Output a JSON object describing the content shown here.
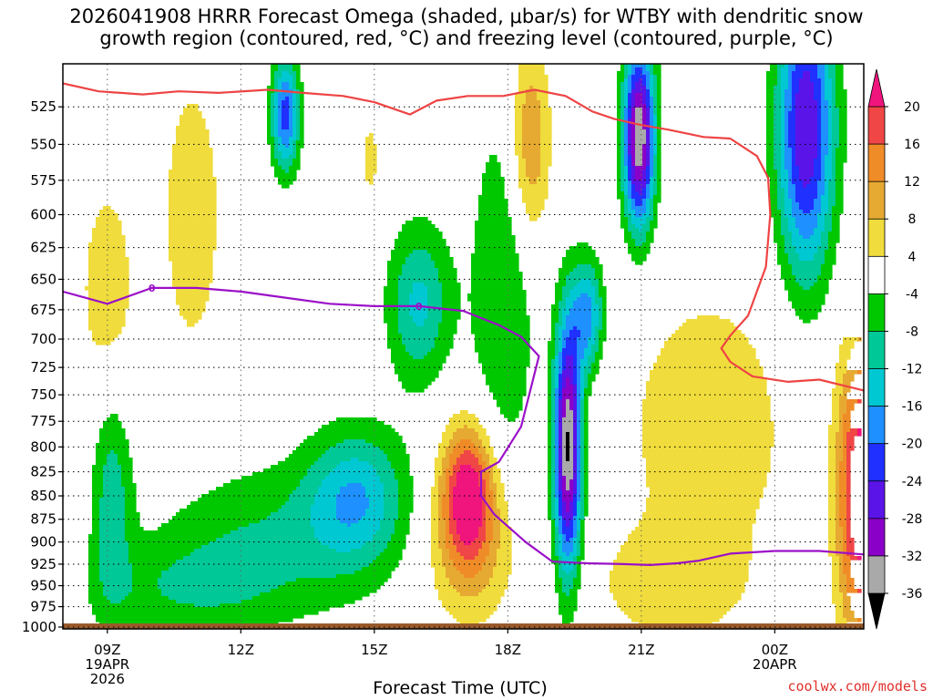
{
  "chart_data": {
    "type": "heatmap",
    "title": "2026041908 HRRR Forecast Omega (shaded, μbar/s) for WTBY with dendritic snow\ngrowth region (contoured, red, °C) and freezing level (contoured, purple, °C)",
    "xlabel": "Forecast Time (UTC)",
    "ylabel": "",
    "x_ticks": [
      {
        "label": "09Z",
        "sublabel": "19APR\n2026",
        "hour": 9
      },
      {
        "label": "12Z",
        "sublabel": "",
        "hour": 12
      },
      {
        "label": "15Z",
        "sublabel": "",
        "hour": 15
      },
      {
        "label": "18Z",
        "sublabel": "",
        "hour": 18
      },
      {
        "label": "21Z",
        "sublabel": "",
        "hour": 21
      },
      {
        "label": "00Z",
        "sublabel": "20APR",
        "hour": 24
      }
    ],
    "xlim_hours": [
      8.0,
      26.0
    ],
    "y_ticks": [
      525,
      550,
      575,
      600,
      625,
      650,
      675,
      700,
      725,
      750,
      775,
      800,
      825,
      850,
      875,
      900,
      925,
      950,
      975,
      1000
    ],
    "ylim_hPa": [
      500,
      1000
    ],
    "y_scale": "log-pressure",
    "colorbar": {
      "levels": [
        -36,
        -32,
        -28,
        -24,
        -20,
        -16,
        -12,
        -8,
        -4,
        4,
        8,
        12,
        16,
        20
      ],
      "labels": [
        "20",
        "16",
        "12",
        "8",
        "4",
        "-4",
        "-8",
        "-12",
        "-16",
        "-20",
        "-24",
        "-28",
        "-32",
        "-36"
      ],
      "colors": {
        "lt-36": "#000000",
        "n36_n32": "#a9a9a9",
        "n32_n28": "#8b00c8",
        "n28_n24": "#5a14e8",
        "n24_n20": "#2030ff",
        "n20_n16": "#1e90ff",
        "n16_n12": "#00c8d2",
        "n12_n8": "#00c896",
        "n8_n4": "#00c800",
        "n4_p4": "#ffffff",
        "p4_p8": "#f0dc3c",
        "p8_p12": "#e6aa32",
        "p12_p16": "#f08c28",
        "p16_p20": "#f04646",
        "gt20": "#f0147d"
      }
    },
    "series": [
      {
        "name": "",
        "kind": "dendritic-snow-growth",
        "color": "#ee4444",
        "x": [
          8.0,
          8.8,
          9.8,
          10.6,
          11.5,
          12.6,
          13.4,
          14.3,
          15.0,
          15.8,
          16.4,
          17.1,
          17.9,
          18.6,
          19.3,
          19.9,
          20.4,
          21.0,
          21.6,
          22.4,
          23.0,
          23.6,
          23.85,
          23.9,
          23.8,
          23.4,
          23.0,
          22.8,
          23.0,
          23.5,
          24.3,
          25.0,
          25.6,
          26.0
        ],
        "y": [
          510,
          515,
          517,
          515,
          516,
          514,
          516,
          518,
          522,
          530,
          521,
          518,
          518,
          514,
          518,
          528,
          533,
          537,
          540,
          545,
          546,
          558,
          573,
          600,
          640,
          680,
          697,
          708,
          720,
          733,
          738,
          736,
          742,
          746
        ]
      },
      {
        "name": "",
        "kind": "freezing-level",
        "color": "#9b10c8",
        "x": [
          8.0,
          8.5,
          9.0,
          10.0,
          11.0,
          12.0,
          13.0,
          14.0,
          15.0,
          16.0,
          17.0,
          17.8,
          18.3,
          18.7,
          18.3,
          17.8,
          17.4,
          17.4,
          17.7,
          18.4,
          19.0,
          19.8,
          20.6,
          21.2,
          21.8,
          22.3,
          23.0,
          24.0,
          25.0,
          26.0
        ],
        "y": [
          660,
          665,
          670,
          657,
          657,
          660,
          665,
          670,
          672,
          672,
          676,
          688,
          698,
          715,
          780,
          815,
          825,
          850,
          870,
          900,
          922,
          924,
          925,
          926,
          924,
          921,
          913,
          910,
          910,
          914
        ]
      }
    ],
    "contour_labels": [
      {
        "text": "0",
        "hour": 10.0,
        "hPa": 657
      },
      {
        "text": "0",
        "hour": 16.0,
        "hPa": 672
      }
    ],
    "omega_field": {
      "units": "μbar/s",
      "centers": [
        {
          "hour": 19.35,
          "hPa": 800,
          "value": -37,
          "sx": 0.22,
          "sy": 0.11
        },
        {
          "hour": 20.95,
          "hPa": 545,
          "value": -36,
          "sx": 0.25,
          "sy": 0.08
        },
        {
          "hour": 19.8,
          "hPa": 680,
          "value": -18,
          "sx": 0.25,
          "sy": 0.05
        },
        {
          "hour": 13.0,
          "hPa": 530,
          "value": -22,
          "sx": 0.22,
          "sy": 0.05
        },
        {
          "hour": 24.7,
          "hPa": 540,
          "value": -28,
          "sx": 0.45,
          "sy": 0.13
        },
        {
          "hour": 16.0,
          "hPa": 670,
          "value": -13,
          "sx": 0.5,
          "sy": 0.07
        },
        {
          "hour": 14.6,
          "hPa": 850,
          "value": -14,
          "sx": 0.8,
          "sy": 0.06
        },
        {
          "hour": 12.6,
          "hPa": 900,
          "value": -8,
          "sx": 1.8,
          "sy": 0.07
        },
        {
          "hour": 9.1,
          "hPa": 850,
          "value": -10,
          "sx": 0.32,
          "sy": 0.1
        },
        {
          "hour": 10.6,
          "hPa": 955,
          "value": -6,
          "sx": 1.5,
          "sy": 0.04
        },
        {
          "hour": 17.1,
          "hPa": 845,
          "value": 22,
          "sx": 0.42,
          "sy": 0.06
        },
        {
          "hour": 17.2,
          "hPa": 910,
          "value": 9,
          "sx": 0.75,
          "sy": 0.07
        },
        {
          "hour": 18.5,
          "hPa": 550,
          "value": 13,
          "sx": 0.32,
          "sy": 0.09
        },
        {
          "hour": 9.0,
          "hPa": 660,
          "value": 7,
          "sx": 0.45,
          "sy": 0.1
        },
        {
          "hour": 10.9,
          "hPa": 600,
          "value": 7,
          "sx": 0.5,
          "sy": 0.13
        },
        {
          "hour": 22.5,
          "hPa": 780,
          "value": 7,
          "sx": 1.4,
          "sy": 0.13
        },
        {
          "hour": 21.6,
          "hPa": 950,
          "value": 6,
          "sx": 1.2,
          "sy": 0.05
        },
        {
          "hour": 25.9,
          "hPa": 850,
          "value": 24,
          "sx": 0.35,
          "sy": 0.13
        },
        {
          "hour": 14.9,
          "hPa": 560,
          "value": 5,
          "sx": 0.2,
          "sy": 0.05
        },
        {
          "hour": 17.9,
          "hPa": 660,
          "value": -8,
          "sx": 0.55,
          "sy": 0.17
        }
      ],
      "ground_color": "#9a5a2a"
    }
  },
  "credit": "coolwx.com/models"
}
